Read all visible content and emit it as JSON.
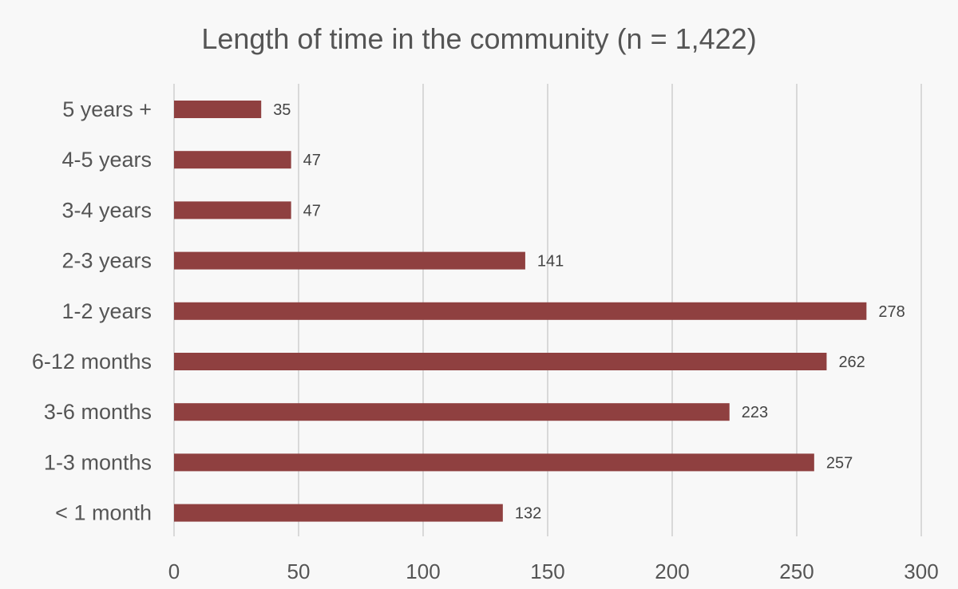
{
  "chart_data": {
    "type": "bar",
    "orientation": "horizontal",
    "title": "Length of time in the community (n = 1,422)",
    "categories": [
      "5 years +",
      "4-5 years",
      "3-4 years",
      "2-3 years",
      "1-2 years",
      "6-12 months",
      "3-6 months",
      "1-3 months",
      "< 1 month"
    ],
    "values": [
      35,
      47,
      47,
      141,
      278,
      262,
      223,
      257,
      132
    ],
    "data_labels": [
      "35",
      "47",
      "47",
      "141",
      "278",
      "262",
      "223",
      "257",
      "132"
    ],
    "xlim": [
      0,
      300
    ],
    "xticks": [
      0,
      50,
      100,
      150,
      200,
      250,
      300
    ],
    "xtick_labels": [
      "0",
      "50",
      "100",
      "150",
      "200",
      "250",
      "300"
    ],
    "grid": "vertical",
    "legend": "none",
    "bar_color": "#8f4040",
    "xlabel": "",
    "ylabel": ""
  }
}
